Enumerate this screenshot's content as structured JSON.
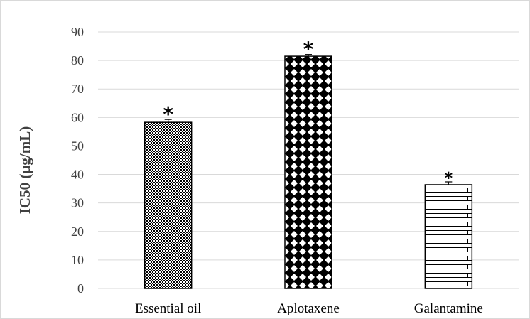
{
  "chart_data": {
    "type": "bar",
    "categories": [
      "Essential oil",
      "Aplotaxene",
      "Galantamine"
    ],
    "values": [
      58.3,
      81.5,
      36.4
    ],
    "errors": [
      1.0,
      0.6,
      1.0
    ],
    "annotations": [
      "*",
      "*",
      "*"
    ],
    "ylabel": "IC50 (µg/mL)",
    "xlabel": "",
    "title": "",
    "ylim": [
      0,
      90
    ],
    "yticks": [
      0,
      10,
      20,
      30,
      40,
      50,
      60,
      70,
      80,
      90
    ],
    "grid": "horizontal",
    "legend": "none",
    "bar_fill_patterns": [
      "checkerboard",
      "diamonds",
      "bricks"
    ],
    "colors": {
      "bar_ink": "#000000",
      "grid": "#d9d9d9",
      "text": "#404040"
    }
  }
}
